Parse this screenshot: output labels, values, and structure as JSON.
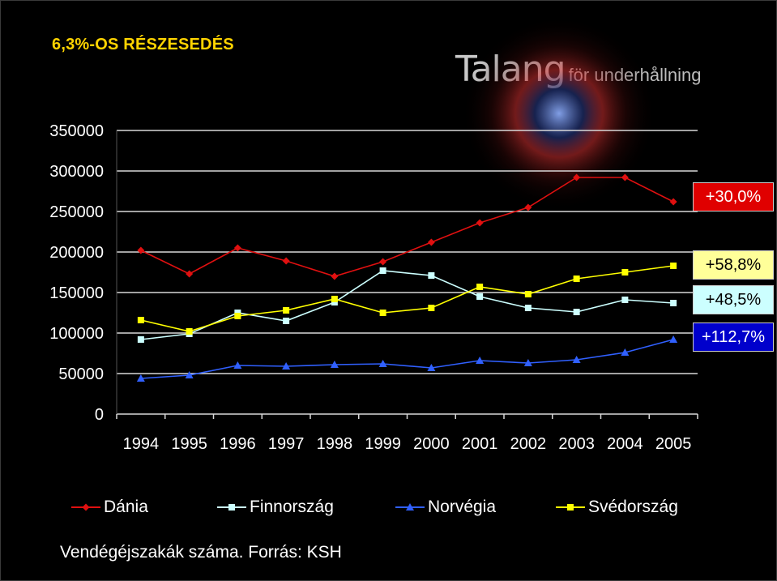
{
  "slide": {
    "title": "6,3%-OS RÉSZESEDÉS",
    "brand_main": "Talang",
    "brand_sub": "för underhållning",
    "source": "Vendégéjszakák száma. Forrás: KSH"
  },
  "badges": [
    {
      "text": "+30,0%",
      "bg": "#e00000",
      "color": "#ffffff"
    },
    {
      "text": "+58,8%",
      "bg": "#ffff99",
      "color": "#000000"
    },
    {
      "text": "+48,5%",
      "bg": "#ccffff",
      "color": "#000000"
    },
    {
      "text": "+112,7%",
      "bg": "#0000cc",
      "color": "#ffffff"
    }
  ],
  "chart_data": {
    "type": "line",
    "categories": [
      "1994",
      "1995",
      "1996",
      "1997",
      "1998",
      "1999",
      "2000",
      "2001",
      "2002",
      "2003",
      "2004",
      "2005"
    ],
    "ylim": [
      0,
      350000
    ],
    "yticks": [
      "0",
      "50000",
      "100000",
      "150000",
      "200000",
      "250000",
      "300000",
      "350000"
    ],
    "grid": true,
    "legend_position": "bottom",
    "series": [
      {
        "name": "Dánia",
        "color": "#e01010",
        "marker": "diamond",
        "values": [
          202000,
          173000,
          205000,
          189000,
          170000,
          188000,
          212000,
          236000,
          255000,
          292000,
          292000,
          262000
        ]
      },
      {
        "name": "Finnország",
        "color": "#ccffff",
        "marker": "square",
        "values": [
          92000,
          99000,
          125000,
          115000,
          138000,
          177000,
          171000,
          145000,
          131000,
          126000,
          141000,
          137000
        ]
      },
      {
        "name": "Norvégia",
        "color": "#3060ff",
        "marker": "triangle",
        "values": [
          44000,
          48000,
          60000,
          59000,
          61000,
          62000,
          57000,
          66000,
          63000,
          67000,
          76000,
          92000
        ]
      },
      {
        "name": "Svédország",
        "color": "#ffff00",
        "marker": "square",
        "values": [
          116000,
          102000,
          121000,
          128000,
          142000,
          125000,
          131000,
          157000,
          148000,
          167000,
          175000,
          183000
        ]
      }
    ]
  }
}
